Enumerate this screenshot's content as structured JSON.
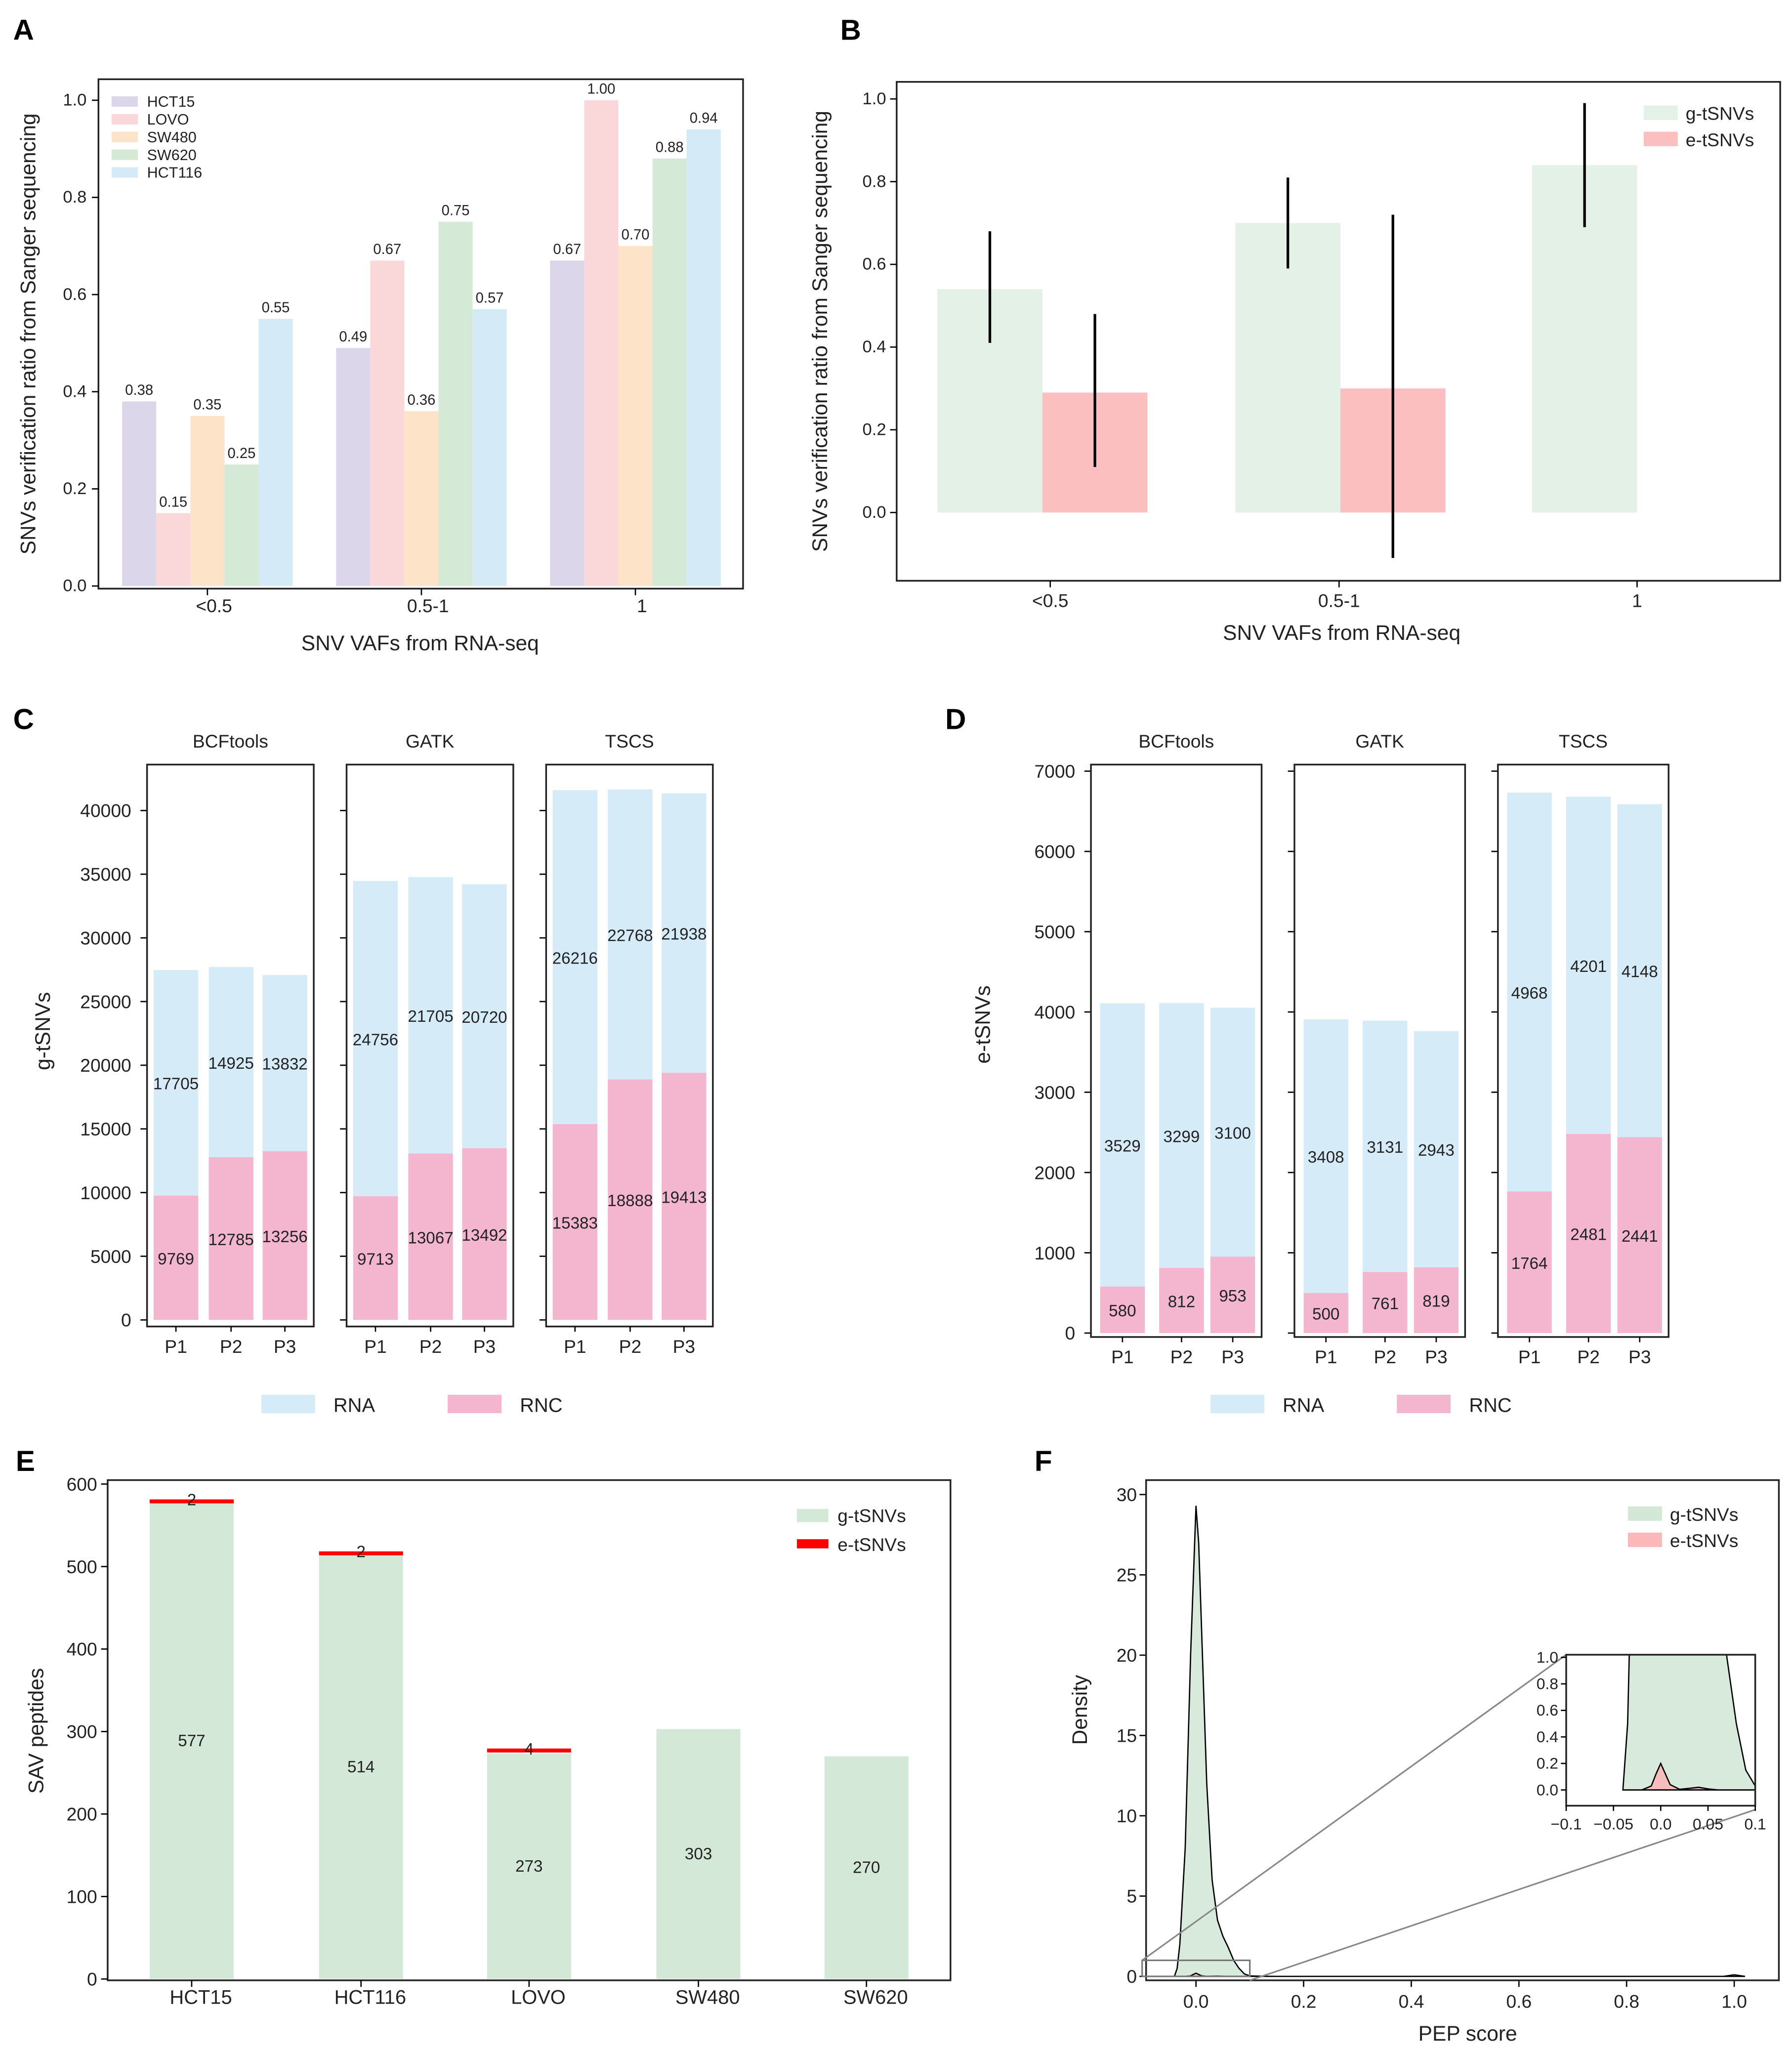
{
  "chart_data": [
    {
      "panel": "A",
      "type": "bar",
      "categories": [
        "<0.5",
        "0.5-1",
        "1"
      ],
      "xlabel": "SNV VAFs from RNA-seq",
      "ylabel": "SNVs verification ratio from Sanger sequencing",
      "ylim": [
        0,
        1.0
      ],
      "yticks": [
        "0.0",
        "0.2",
        "0.4",
        "0.6",
        "0.8",
        "1.0"
      ],
      "legend": "top-left",
      "series": [
        {
          "name": "HCT15",
          "color": "#dcd6ea",
          "values": [
            0.38,
            0.49,
            0.67
          ]
        },
        {
          "name": "LOVO",
          "color": "#fad7d8",
          "values": [
            0.15,
            0.67,
            1.0
          ]
        },
        {
          "name": "SW480",
          "color": "#fde3c8",
          "values": [
            0.35,
            0.36,
            0.7
          ]
        },
        {
          "name": "SW620",
          "color": "#d4e9d6",
          "values": [
            0.25,
            0.75,
            0.88
          ]
        },
        {
          "name": "HCT116",
          "color": "#d5eaf7",
          "values": [
            0.55,
            0.57,
            0.94
          ]
        }
      ]
    },
    {
      "panel": "B",
      "type": "bar",
      "categories": [
        "<0.5",
        "0.5-1",
        "1"
      ],
      "xlabel": "SNV VAFs from RNA-seq",
      "ylabel": "SNVs verification ratio from Sanger sequencing",
      "ylim": [
        -0.15,
        1.05
      ],
      "yticks": [
        "0.0",
        "0.2",
        "0.4",
        "0.6",
        "0.8",
        "1.0"
      ],
      "legend": "top-right",
      "series": [
        {
          "name": "g-tSNVs",
          "color": "#e4f1e6",
          "values": [
            0.54,
            0.7,
            0.84
          ],
          "error_low": [
            0.41,
            0.59,
            0.69
          ],
          "error_high": [
            0.68,
            0.81,
            0.99
          ]
        },
        {
          "name": "e-tSNVs",
          "color": "#fbbfc0",
          "values": [
            0.29,
            0.3,
            null
          ],
          "error_low": [
            0.11,
            -0.11,
            null
          ],
          "error_high": [
            0.48,
            0.72,
            null
          ]
        }
      ]
    },
    {
      "panel": "C",
      "type": "bar",
      "stacked": true,
      "ylabel": "g-tSNVs",
      "ylim": [
        0,
        42000
      ],
      "yticks": [
        "0",
        "5000",
        "10000",
        "15000",
        "20000",
        "25000",
        "30000",
        "35000",
        "40000"
      ],
      "legend": "bottom",
      "legend_items": [
        {
          "name": "RNA",
          "color": "#d6ebf8"
        },
        {
          "name": "RNC",
          "color": "#f4b6cf"
        }
      ],
      "facets": [
        {
          "title": "BCFtools",
          "categories": [
            "P1",
            "P2",
            "P3"
          ],
          "RNC": [
            9769,
            12785,
            13256
          ],
          "RNA": [
            17705,
            14925,
            13832
          ]
        },
        {
          "title": "GATK",
          "categories": [
            "P1",
            "P2",
            "P3"
          ],
          "RNC": [
            9713,
            13067,
            13492
          ],
          "RNA": [
            24756,
            21705,
            20720
          ]
        },
        {
          "title": "TSCS",
          "categories": [
            "P1",
            "P2",
            "P3"
          ],
          "RNC": [
            15383,
            18888,
            19413
          ],
          "RNA": [
            26216,
            22768,
            21938
          ]
        }
      ]
    },
    {
      "panel": "D",
      "type": "bar",
      "stacked": true,
      "ylabel": "e-tSNVs",
      "ylim": [
        0,
        7000
      ],
      "yticks": [
        "0",
        "1000",
        "2000",
        "3000",
        "4000",
        "5000",
        "6000",
        "7000"
      ],
      "legend": "bottom",
      "legend_items": [
        {
          "name": "RNA",
          "color": "#d6ebf8"
        },
        {
          "name": "RNC",
          "color": "#f4b6cf"
        }
      ],
      "facets": [
        {
          "title": "BCFtools",
          "categories": [
            "P1",
            "P2",
            "P3"
          ],
          "RNC": [
            580,
            812,
            953
          ],
          "RNA": [
            3529,
            3299,
            3100
          ]
        },
        {
          "title": "GATK",
          "categories": [
            "P1",
            "P2",
            "P3"
          ],
          "RNC": [
            500,
            761,
            819
          ],
          "RNA": [
            3408,
            3131,
            2943
          ]
        },
        {
          "title": "TSCS",
          "categories": [
            "P1",
            "P2",
            "P3"
          ],
          "RNC": [
            1764,
            2481,
            2441
          ],
          "RNA": [
            4968,
            4201,
            4148
          ]
        }
      ]
    },
    {
      "panel": "E",
      "type": "bar",
      "stacked": true,
      "categories": [
        "HCT15",
        "HCT116",
        "LOVO",
        "SW480",
        "SW620"
      ],
      "ylabel": "SAV peptides",
      "ylim": [
        0,
        600
      ],
      "yticks": [
        "0",
        "100",
        "200",
        "300",
        "400",
        "500",
        "600"
      ],
      "legend": "top-right",
      "series": [
        {
          "name": "g-tSNVs",
          "color": "#d4e8d8",
          "values": [
            577,
            514,
            273,
            303,
            270
          ]
        },
        {
          "name": "e-tSNVs",
          "color": "#ff0000",
          "values": [
            2,
            2,
            4,
            0,
            0
          ]
        }
      ]
    },
    {
      "panel": "F",
      "type": "area",
      "xlabel": "PEP score",
      "ylabel": "Density",
      "xlim": [
        -0.1,
        1.08
      ],
      "ylim": [
        0,
        30
      ],
      "xticks": [
        "0.0",
        "0.2",
        "0.4",
        "0.6",
        "0.8",
        "1.0"
      ],
      "yticks": [
        "0",
        "5",
        "10",
        "15",
        "20",
        "25",
        "30"
      ],
      "legend": "top-right",
      "series": [
        {
          "name": "g-tSNVs",
          "color": "#d4e8d8",
          "x": [
            -0.04,
            -0.035,
            -0.03,
            -0.02,
            -0.01,
            0.0,
            0.005,
            0.01,
            0.02,
            0.03,
            0.04,
            0.05,
            0.06,
            0.07,
            0.08,
            0.09,
            0.1,
            0.12,
            0.15,
            0.98,
            1.0,
            1.02
          ],
          "y": [
            0,
            0.5,
            2,
            8,
            20,
            29.3,
            27,
            22,
            12,
            6,
            3.5,
            2.5,
            1.8,
            1.0,
            0.5,
            0.15,
            0.03,
            0.01,
            0,
            0,
            0.1,
            0
          ]
        },
        {
          "name": "e-tSNVs",
          "color": "#fbb8b8",
          "x": [
            -0.02,
            -0.01,
            -0.005,
            0.0,
            0.005,
            0.01,
            0.02,
            0.03,
            0.04,
            0.05,
            0.06
          ],
          "y": [
            0,
            0.03,
            0.12,
            0.2,
            0.12,
            0.04,
            0.005,
            0.012,
            0.02,
            0.008,
            0
          ]
        }
      ],
      "inset": {
        "xlim": [
          -0.1,
          0.1
        ],
        "ylim": [
          0,
          1.0
        ],
        "xticks": [
          "−0.1",
          "−0.05",
          "0.0",
          "0.05",
          "0.1"
        ],
        "yticks": [
          "0.0",
          "0.2",
          "0.4",
          "0.6",
          "0.8",
          "1.0"
        ]
      }
    }
  ]
}
